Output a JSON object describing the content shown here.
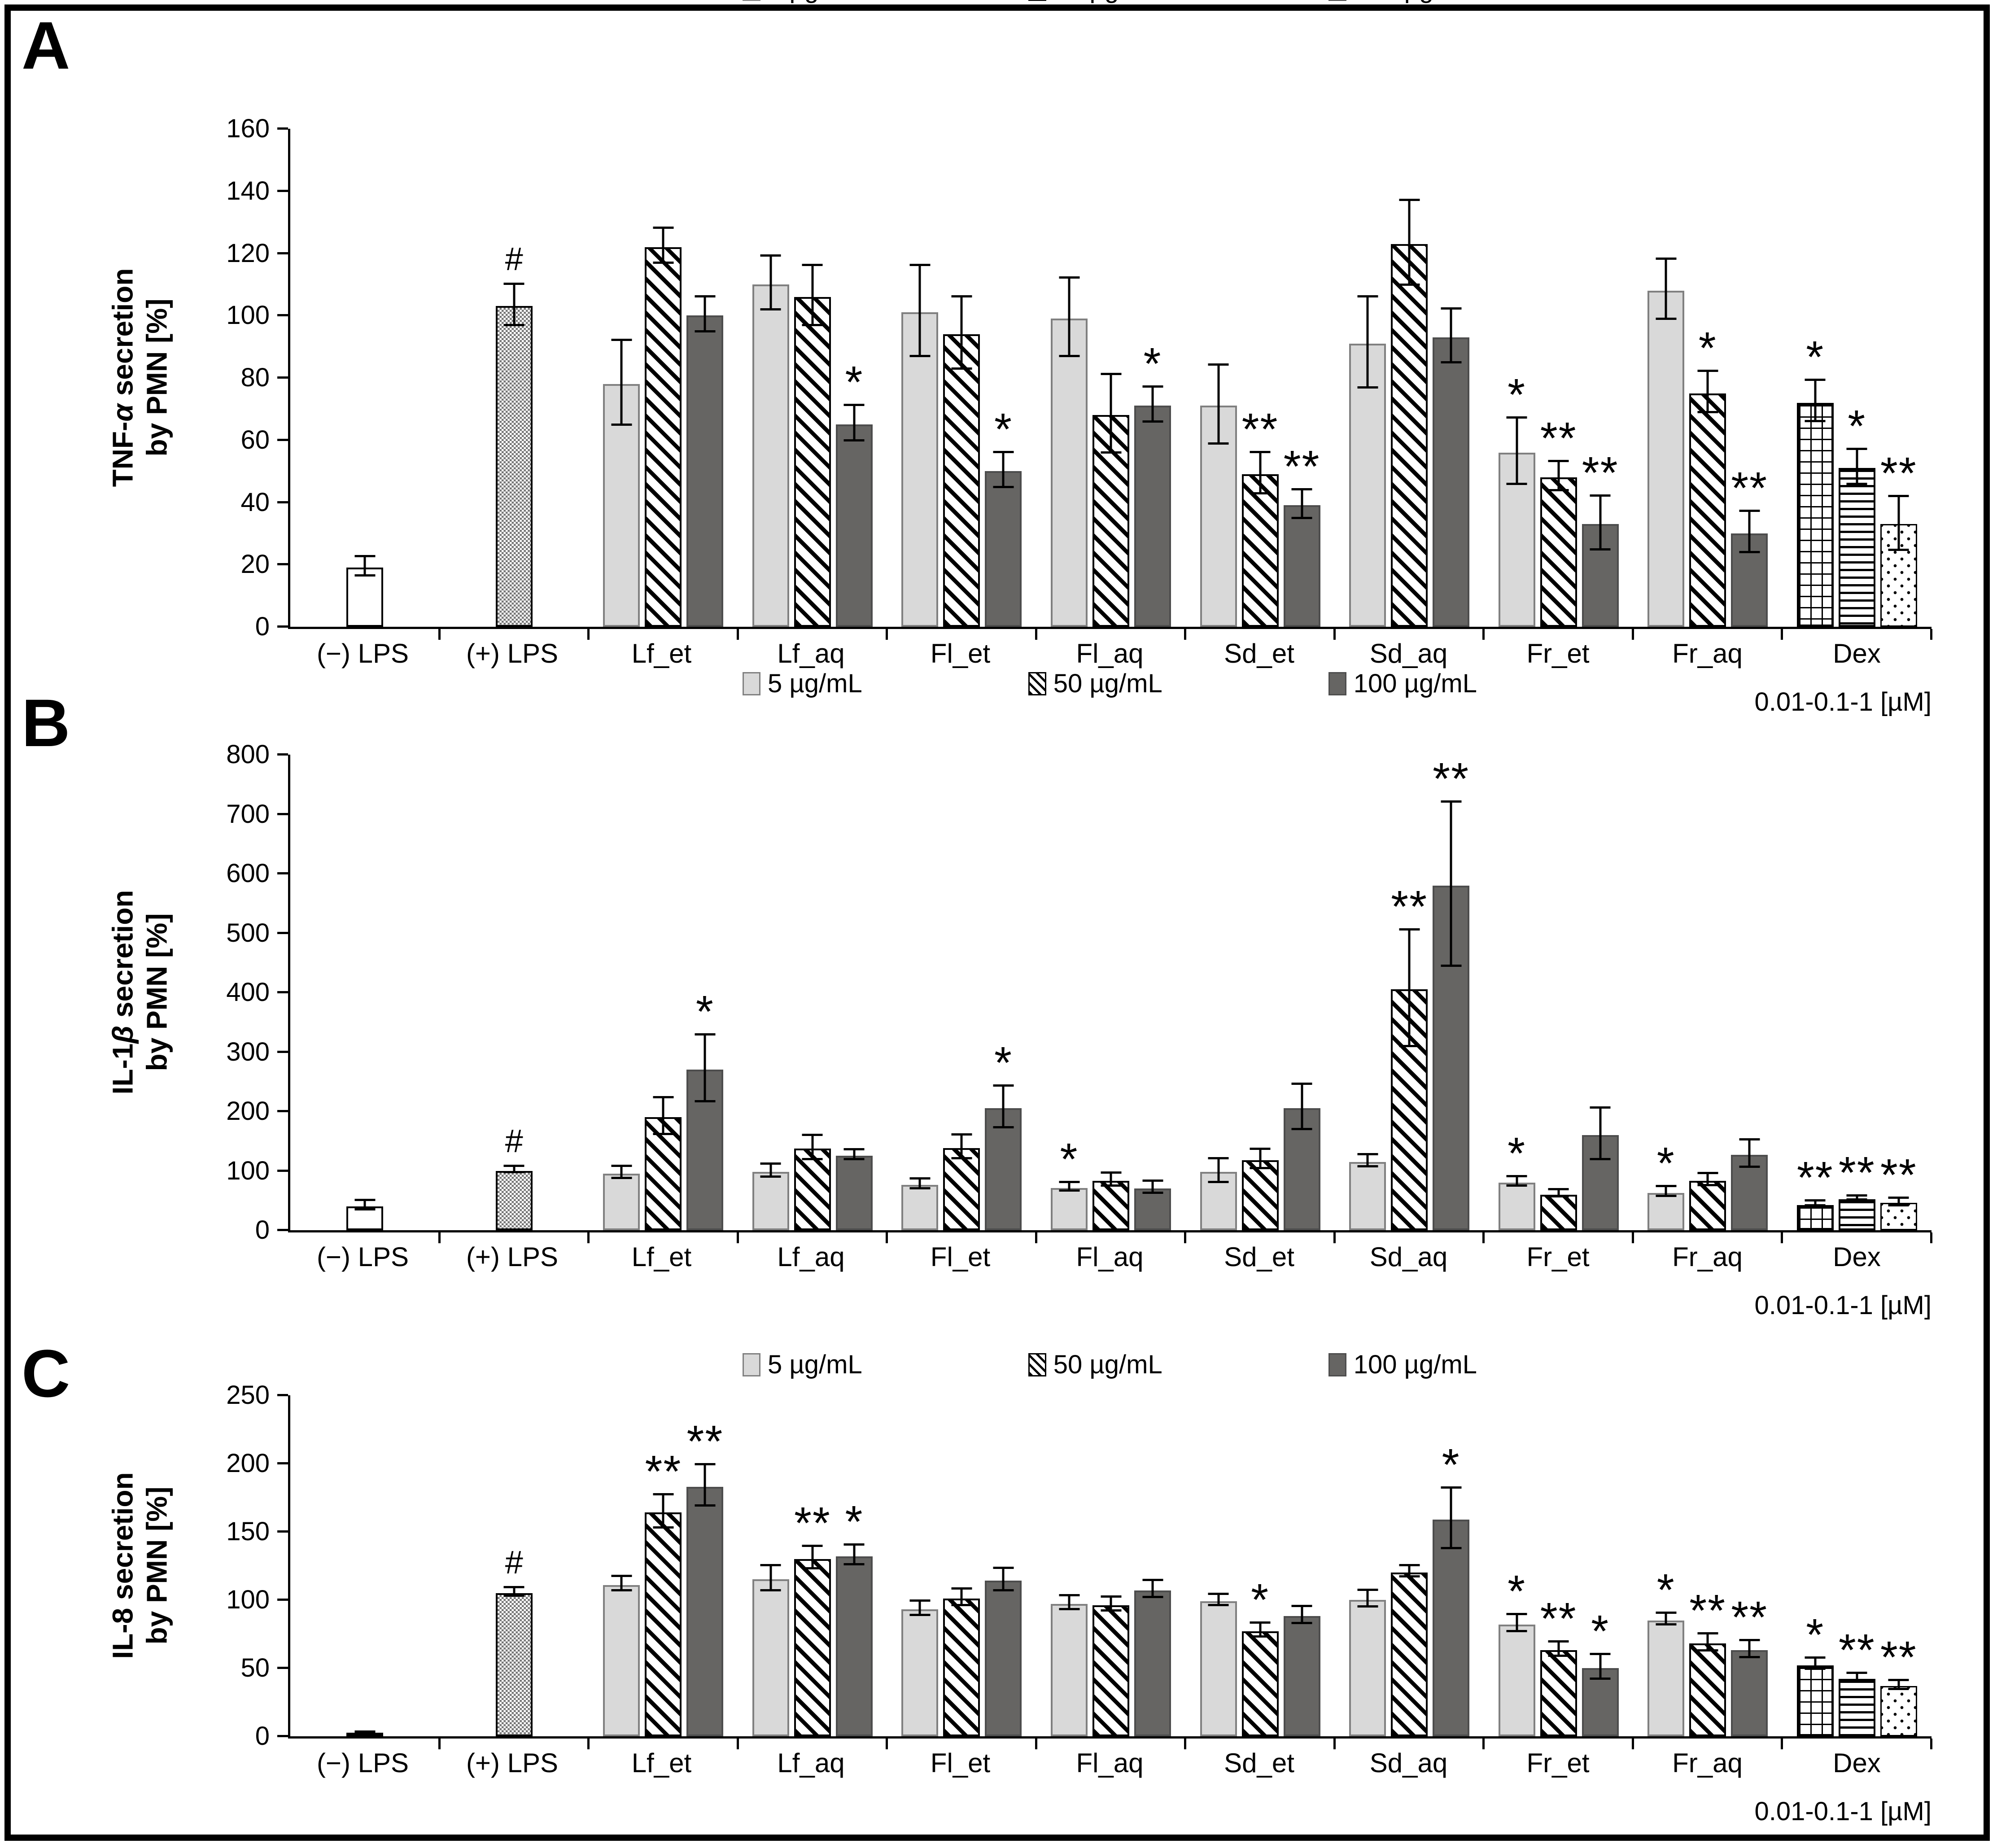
{
  "legend": [
    {
      "label": "5 µg/mL",
      "style": "light"
    },
    {
      "label": "50 µg/mL",
      "style": "hatch"
    },
    {
      "label": "100 µg/mL",
      "style": "dark"
    }
  ],
  "chart_data": [
    {
      "type": "bar",
      "panel_label": "A",
      "ylabel": "TNF-α secretion by PMN [%]",
      "ylabel_lines": [
        [
          {
            "t": "TNF-"
          },
          {
            "t": "α",
            "i": true
          },
          {
            "t": " secretion"
          }
        ],
        [
          {
            "t": "by PMN [%]"
          }
        ]
      ],
      "ylim": [
        0,
        160
      ],
      "ytick_step": 20,
      "grid": false,
      "legend_position": "top-center",
      "xnote": "0.01-0.1-1 [µM]",
      "legend": [
        {
          "label": "5 µg/mL",
          "style": "light"
        },
        {
          "label": "50 µg/mL",
          "style": "hatch"
        },
        {
          "label": "100 µg/mL",
          "style": "dark"
        }
      ],
      "groups": [
        {
          "category": "(−) LPS",
          "bars": [
            {
              "style": "plain",
              "value": 19,
              "err": 3.5,
              "sig": ""
            }
          ]
        },
        {
          "category": "(+) LPS",
          "bars": [
            {
              "style": "stipple",
              "value": 103,
              "err": 7,
              "sig": "#"
            }
          ]
        },
        {
          "category": "Lf_et",
          "bars": [
            {
              "style": "light",
              "value": 78,
              "err": 14,
              "sig": ""
            },
            {
              "style": "hatch",
              "value": 122,
              "err": 6,
              "sig": ""
            },
            {
              "style": "dark",
              "value": 100,
              "err": 6,
              "sig": ""
            }
          ]
        },
        {
          "category": "Lf_aq",
          "bars": [
            {
              "style": "light",
              "value": 110,
              "err": 9,
              "sig": ""
            },
            {
              "style": "hatch",
              "value": 106,
              "err": 10,
              "sig": ""
            },
            {
              "style": "dark",
              "value": 65,
              "err": 6,
              "sig": "*"
            }
          ]
        },
        {
          "category": "Fl_et",
          "bars": [
            {
              "style": "light",
              "value": 101,
              "err": 15,
              "sig": ""
            },
            {
              "style": "hatch",
              "value": 94,
              "err": 12,
              "sig": ""
            },
            {
              "style": "dark",
              "value": 50,
              "err": 6,
              "sig": "*"
            }
          ]
        },
        {
          "category": "Fl_aq",
          "bars": [
            {
              "style": "light",
              "value": 99,
              "err": 13,
              "sig": ""
            },
            {
              "style": "hatch",
              "value": 68,
              "err": 13,
              "sig": ""
            },
            {
              "style": "dark",
              "value": 71,
              "err": 6,
              "sig": "*"
            }
          ]
        },
        {
          "category": "Sd_et",
          "bars": [
            {
              "style": "light",
              "value": 71,
              "err": 13,
              "sig": ""
            },
            {
              "style": "hatch",
              "value": 49,
              "err": 7,
              "sig": "**"
            },
            {
              "style": "dark",
              "value": 39,
              "err": 5,
              "sig": "**"
            }
          ]
        },
        {
          "category": "Sd_aq",
          "bars": [
            {
              "style": "light",
              "value": 91,
              "err": 15,
              "sig": ""
            },
            {
              "style": "hatch",
              "value": 123,
              "err": 14,
              "sig": ""
            },
            {
              "style": "dark",
              "value": 93,
              "err": 9,
              "sig": ""
            }
          ]
        },
        {
          "category": "Fr_et",
          "bars": [
            {
              "style": "light",
              "value": 56,
              "err": 11,
              "sig": "*"
            },
            {
              "style": "hatch",
              "value": 48,
              "err": 5,
              "sig": "**"
            },
            {
              "style": "dark",
              "value": 33,
              "err": 9,
              "sig": "**"
            }
          ]
        },
        {
          "category": "Fr_aq",
          "bars": [
            {
              "style": "light",
              "value": 108,
              "err": 10,
              "sig": ""
            },
            {
              "style": "hatch",
              "value": 75,
              "err": 7,
              "sig": "*"
            },
            {
              "style": "dark",
              "value": 30,
              "err": 7,
              "sig": "**"
            }
          ]
        },
        {
          "category": "Dex",
          "bars": [
            {
              "style": "grid",
              "value": 72,
              "err": 7,
              "sig": "*"
            },
            {
              "style": "hlines",
              "value": 51,
              "err": 6,
              "sig": "*"
            },
            {
              "style": "dots",
              "value": 33,
              "err": 9,
              "sig": "**"
            }
          ]
        }
      ]
    },
    {
      "type": "bar",
      "panel_label": "B",
      "ylabel": "IL-1β secretion by PMN [%]",
      "ylabel_lines": [
        [
          {
            "t": "IL-1"
          },
          {
            "t": "β",
            "i": true
          },
          {
            "t": " secretion"
          }
        ],
        [
          {
            "t": "by PMN [%]"
          }
        ]
      ],
      "ylim": [
        0,
        800
      ],
      "ytick_step": 100,
      "grid": false,
      "legend_position": "top-center",
      "xnote": "0.01-0.1-1 [µM]",
      "legend": [
        {
          "label": "5 µg/mL",
          "style": "light"
        },
        {
          "label": "50 µg/mL",
          "style": "hatch"
        },
        {
          "label": "100 µg/mL",
          "style": "dark"
        }
      ],
      "groups": [
        {
          "category": "(−) LPS",
          "bars": [
            {
              "style": "plain",
              "value": 40,
              "err": 10,
              "sig": ""
            }
          ]
        },
        {
          "category": "(+) LPS",
          "bars": [
            {
              "style": "stipple",
              "value": 100,
              "err": 7,
              "sig": "#"
            }
          ]
        },
        {
          "category": "Lf_et",
          "bars": [
            {
              "style": "light",
              "value": 95,
              "err": 12,
              "sig": ""
            },
            {
              "style": "hatch",
              "value": 190,
              "err": 33,
              "sig": ""
            },
            {
              "style": "dark",
              "value": 270,
              "err": 58,
              "sig": "*"
            }
          ]
        },
        {
          "category": "Lf_aq",
          "bars": [
            {
              "style": "light",
              "value": 98,
              "err": 13,
              "sig": ""
            },
            {
              "style": "hatch",
              "value": 137,
              "err": 22,
              "sig": ""
            },
            {
              "style": "dark",
              "value": 125,
              "err": 10,
              "sig": ""
            }
          ]
        },
        {
          "category": "Fl_et",
          "bars": [
            {
              "style": "light",
              "value": 76,
              "err": 10,
              "sig": ""
            },
            {
              "style": "hatch",
              "value": 138,
              "err": 22,
              "sig": ""
            },
            {
              "style": "dark",
              "value": 205,
              "err": 37,
              "sig": "*"
            }
          ]
        },
        {
          "category": "Fl_aq",
          "bars": [
            {
              "style": "light",
              "value": 71,
              "err": 9,
              "sig": "*"
            },
            {
              "style": "hatch",
              "value": 83,
              "err": 13,
              "sig": ""
            },
            {
              "style": "dark",
              "value": 70,
              "err": 12,
              "sig": ""
            }
          ]
        },
        {
          "category": "Sd_et",
          "bars": [
            {
              "style": "light",
              "value": 98,
              "err": 22,
              "sig": ""
            },
            {
              "style": "hatch",
              "value": 118,
              "err": 18,
              "sig": ""
            },
            {
              "style": "dark",
              "value": 205,
              "err": 40,
              "sig": ""
            }
          ]
        },
        {
          "category": "Sd_aq",
          "bars": [
            {
              "style": "light",
              "value": 115,
              "err": 12,
              "sig": ""
            },
            {
              "style": "hatch",
              "value": 405,
              "err": 100,
              "sig": "**"
            },
            {
              "style": "dark",
              "value": 580,
              "err": 140,
              "sig": "**"
            }
          ]
        },
        {
          "category": "Fr_et",
          "bars": [
            {
              "style": "light",
              "value": 80,
              "err": 10,
              "sig": "*"
            },
            {
              "style": "hatch",
              "value": 60,
              "err": 8,
              "sig": ""
            },
            {
              "style": "dark",
              "value": 160,
              "err": 45,
              "sig": ""
            }
          ]
        },
        {
          "category": "Fr_aq",
          "bars": [
            {
              "style": "light",
              "value": 63,
              "err": 10,
              "sig": "*"
            },
            {
              "style": "hatch",
              "value": 83,
              "err": 12,
              "sig": ""
            },
            {
              "style": "dark",
              "value": 127,
              "err": 25,
              "sig": ""
            }
          ]
        },
        {
          "category": "Dex",
          "bars": [
            {
              "style": "grid",
              "value": 42,
              "err": 6,
              "sig": "**"
            },
            {
              "style": "hlines",
              "value": 52,
              "err": 5,
              "sig": "**"
            },
            {
              "style": "dots",
              "value": 46,
              "err": 8,
              "sig": "**"
            }
          ]
        }
      ]
    },
    {
      "type": "bar",
      "panel_label": "C",
      "ylabel": "IL-8 secretion by PMN [%]",
      "ylabel_lines": [
        [
          {
            "t": "IL-8 secretion"
          }
        ],
        [
          {
            "t": "by PMN [%]"
          }
        ]
      ],
      "ylim": [
        0,
        250
      ],
      "ytick_step": 50,
      "grid": false,
      "legend_position": "top-center",
      "xnote": "0.01-0.1-1 [µM]",
      "legend": [
        {
          "label": "5 µg/mL",
          "style": "light"
        },
        {
          "label": "50 µg/mL",
          "style": "hatch"
        },
        {
          "label": "100 µg/mL",
          "style": "dark"
        }
      ],
      "groups": [
        {
          "category": "(−) LPS",
          "bars": [
            {
              "style": "plain",
              "value": 2,
              "err": 1,
              "sig": ""
            }
          ]
        },
        {
          "category": "(+) LPS",
          "bars": [
            {
              "style": "stipple",
              "value": 105,
              "err": 4,
              "sig": "#"
            }
          ]
        },
        {
          "category": "Lf_et",
          "bars": [
            {
              "style": "light",
              "value": 111,
              "err": 6,
              "sig": ""
            },
            {
              "style": "hatch",
              "value": 164,
              "err": 13,
              "sig": "**"
            },
            {
              "style": "dark",
              "value": 183,
              "err": 16,
              "sig": "**"
            }
          ]
        },
        {
          "category": "Lf_aq",
          "bars": [
            {
              "style": "light",
              "value": 115,
              "err": 10,
              "sig": ""
            },
            {
              "style": "hatch",
              "value": 130,
              "err": 9,
              "sig": "**"
            },
            {
              "style": "dark",
              "value": 132,
              "err": 8,
              "sig": "*"
            }
          ]
        },
        {
          "category": "Fl_et",
          "bars": [
            {
              "style": "light",
              "value": 93,
              "err": 6,
              "sig": ""
            },
            {
              "style": "hatch",
              "value": 101,
              "err": 7,
              "sig": ""
            },
            {
              "style": "dark",
              "value": 114,
              "err": 9,
              "sig": ""
            }
          ]
        },
        {
          "category": "Fl_aq",
          "bars": [
            {
              "style": "light",
              "value": 97,
              "err": 6,
              "sig": ""
            },
            {
              "style": "hatch",
              "value": 96,
              "err": 6,
              "sig": ""
            },
            {
              "style": "dark",
              "value": 107,
              "err": 7,
              "sig": ""
            }
          ]
        },
        {
          "category": "Sd_et",
          "bars": [
            {
              "style": "light",
              "value": 99,
              "err": 5,
              "sig": ""
            },
            {
              "style": "hatch",
              "value": 77,
              "err": 6,
              "sig": "*"
            },
            {
              "style": "dark",
              "value": 88,
              "err": 7,
              "sig": ""
            }
          ]
        },
        {
          "category": "Sd_aq",
          "bars": [
            {
              "style": "light",
              "value": 100,
              "err": 7,
              "sig": ""
            },
            {
              "style": "hatch",
              "value": 120,
              "err": 5,
              "sig": ""
            },
            {
              "style": "dark",
              "value": 159,
              "err": 23,
              "sig": "*"
            }
          ]
        },
        {
          "category": "Fr_et",
          "bars": [
            {
              "style": "light",
              "value": 82,
              "err": 7,
              "sig": "*"
            },
            {
              "style": "hatch",
              "value": 63,
              "err": 6,
              "sig": "**"
            },
            {
              "style": "dark",
              "value": 50,
              "err": 10,
              "sig": "*"
            }
          ]
        },
        {
          "category": "Fr_aq",
          "bars": [
            {
              "style": "light",
              "value": 85,
              "err": 5,
              "sig": "*"
            },
            {
              "style": "hatch",
              "value": 68,
              "err": 7,
              "sig": "**"
            },
            {
              "style": "dark",
              "value": 63,
              "err": 7,
              "sig": "**"
            }
          ]
        },
        {
          "category": "Dex",
          "bars": [
            {
              "style": "grid",
              "value": 52,
              "err": 5,
              "sig": "*"
            },
            {
              "style": "hlines",
              "value": 42,
              "err": 4,
              "sig": "**"
            },
            {
              "style": "dots",
              "value": 37,
              "err": 4,
              "sig": "**"
            }
          ]
        }
      ]
    }
  ]
}
